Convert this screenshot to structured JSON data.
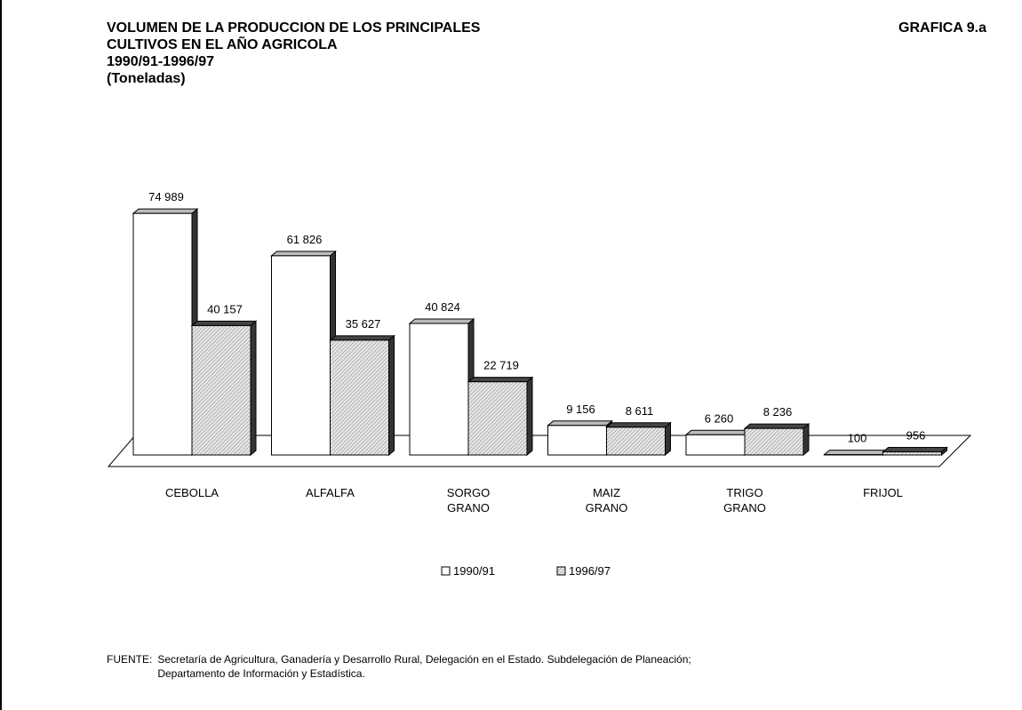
{
  "chart_data": {
    "type": "bar3d",
    "title": "VOLUMEN DE LA PRODUCCION DE LOS PRINCIPALES\nCULTIVOS EN EL AÑO AGRICOLA",
    "subtitle": "1990/91-1996/97",
    "unit": "(Toneladas)",
    "figure_label": "GRAFICA 9.a",
    "categories": [
      "CEBOLLA",
      "ALFALFA",
      "SORGO\nGRANO",
      "MAIZ\nGRANO",
      "TRIGO\nGRANO",
      "FRIJOL"
    ],
    "series": [
      {
        "name": "1990/91",
        "color": "#ffffff",
        "pattern": "none",
        "values": [
          74989,
          61826,
          40824,
          9156,
          6260,
          100
        ],
        "value_labels": [
          "74 989",
          "61 826",
          "40 824",
          "9 156",
          "6 260",
          "100"
        ]
      },
      {
        "name": "1996/97",
        "color": "#d9d9d9",
        "pattern": "hatch",
        "values": [
          40157,
          35627,
          22719,
          8611,
          8236,
          956
        ],
        "value_labels": [
          "40 157",
          "35 627",
          "22 719",
          "8 611",
          "8 236",
          "956"
        ]
      }
    ],
    "ylim": [
      0,
      80000
    ],
    "legend": "bottom",
    "source_label": "FUENTE:",
    "source": "Secretaría de Agricultura, Ganadería y Desarrollo Rural, Delegación en el Estado. Subdelegación de Planeación;\nDepartamento de Información y Estadística."
  }
}
